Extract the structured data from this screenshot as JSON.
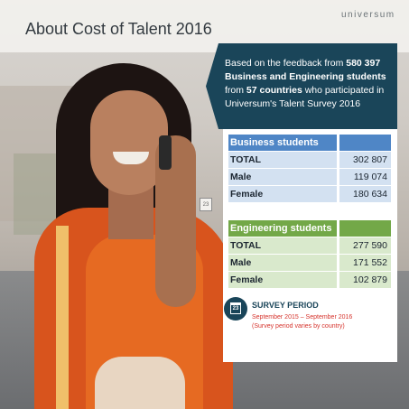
{
  "header": {
    "title": "About Cost of Talent 2016",
    "logo": "universum"
  },
  "banner": {
    "line_prefix": "Based on the feedback from ",
    "students_count": "580 397",
    "student_types": "Business and Engineering students",
    "from_text": "from ",
    "countries": "57 countries",
    "participated": " who participated in",
    "survey": "Universum's Talent Survey 2016"
  },
  "business": {
    "header": "Business students",
    "rows": [
      {
        "label": "TOTAL",
        "value": "302 807"
      },
      {
        "label": "Male",
        "value": "119 074"
      },
      {
        "label": "Female",
        "value": "180 634"
      }
    ]
  },
  "engineering": {
    "header": "Engineering students",
    "rows": [
      {
        "label": "TOTAL",
        "value": "277 590"
      },
      {
        "label": "Male",
        "value": "171 552"
      },
      {
        "label": "Female",
        "value": "102 879"
      }
    ]
  },
  "survey_period": {
    "icon_number": "23",
    "title": "SURVEY PERIOD",
    "dates": "September 2015 – September  2016",
    "note": "(Survey period varies by country)"
  },
  "colors": {
    "navy": "#1a4559",
    "business_blue": "#4f86c6",
    "engineering_green": "#73a848",
    "accent_red": "#d6342d"
  }
}
